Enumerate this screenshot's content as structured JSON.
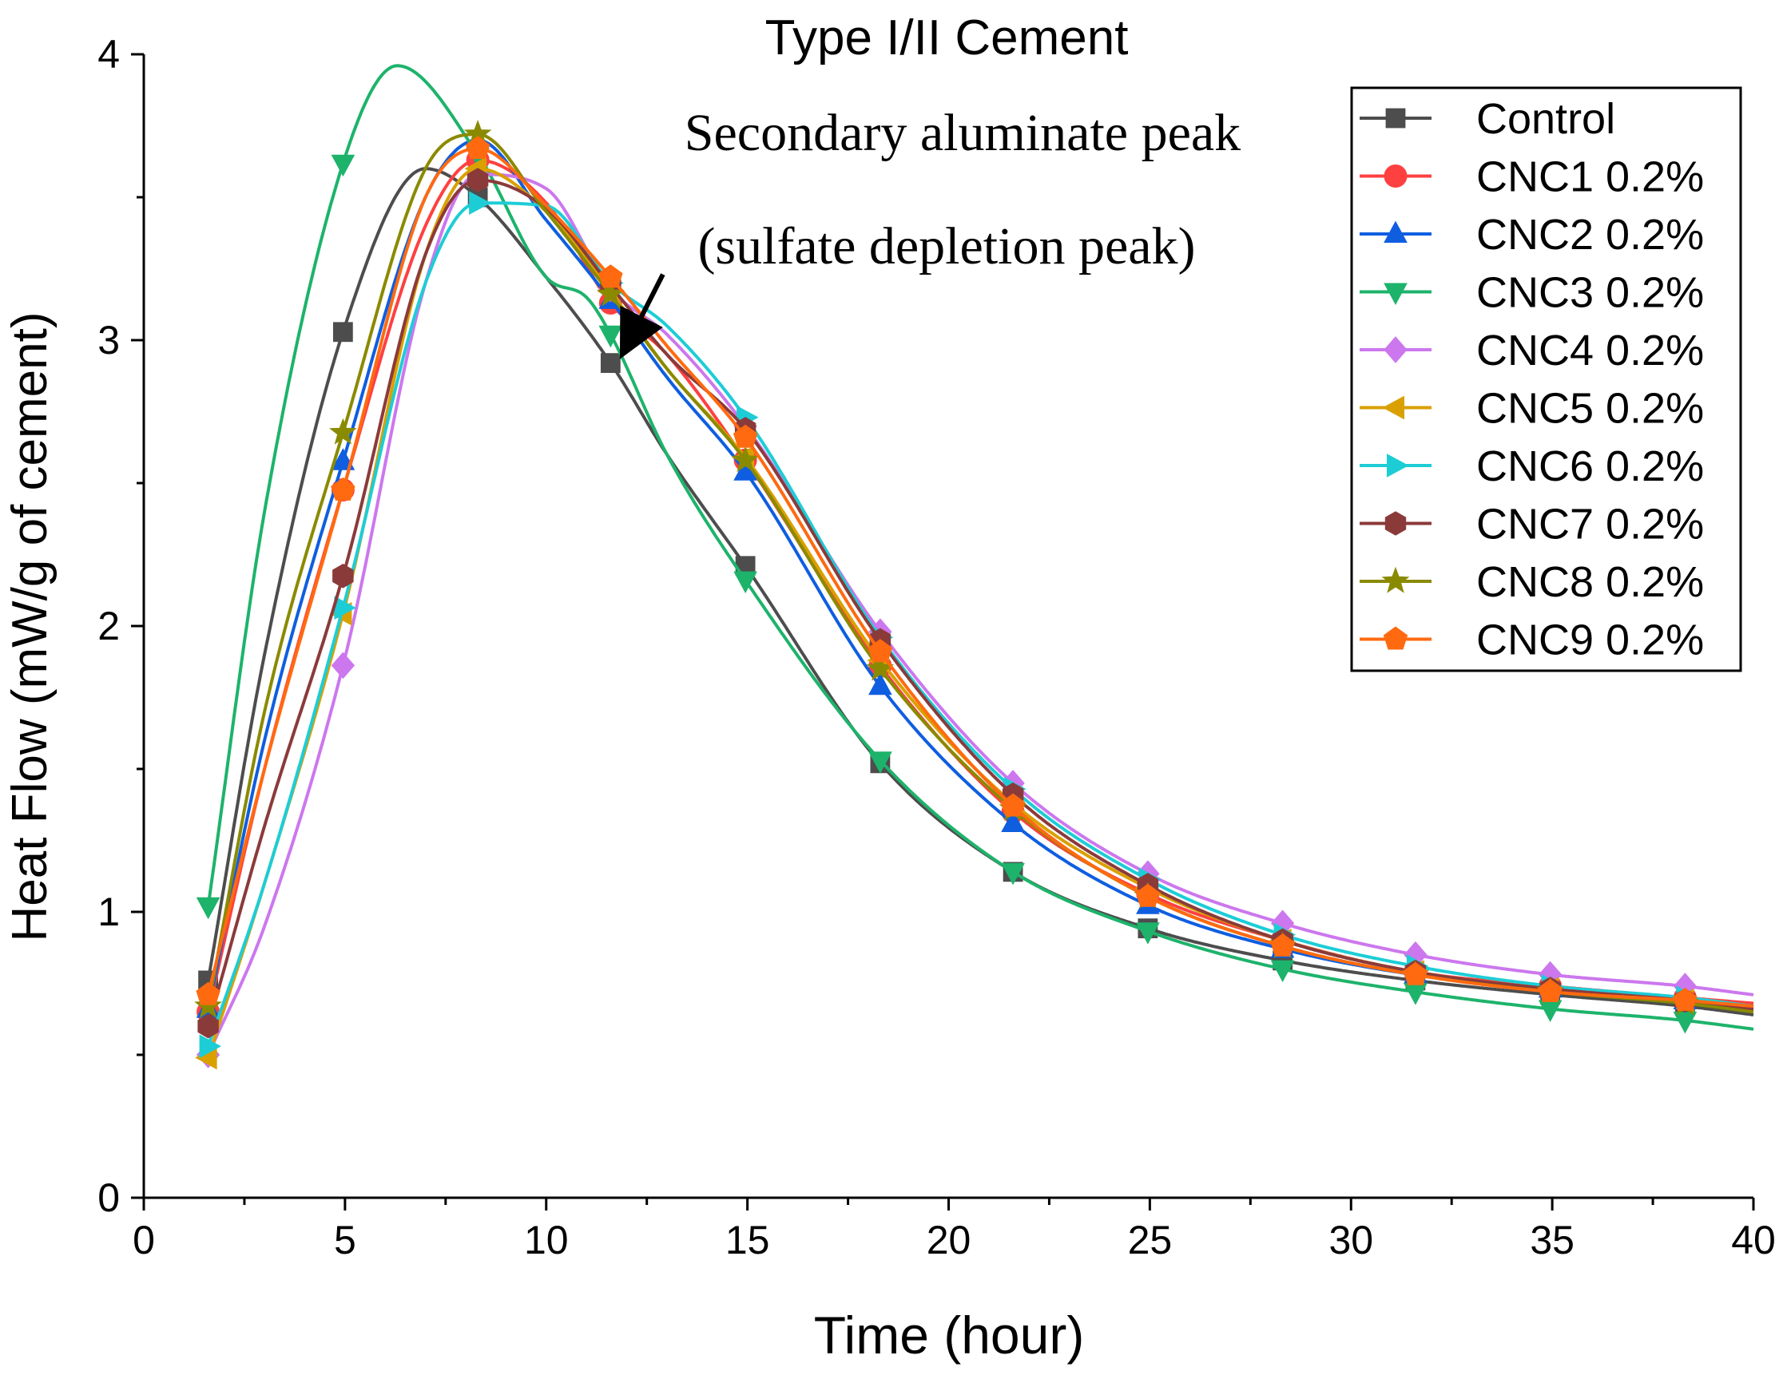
{
  "chart_data": {
    "type": "line",
    "title": "Type I/II Cement",
    "xlabel": "Time (hour)",
    "ylabel": "Heat Flow (mW/g of cement)",
    "xlim": [
      0,
      40
    ],
    "ylim": [
      0,
      4
    ],
    "xticks": [
      0,
      5,
      10,
      15,
      20,
      25,
      30,
      35,
      40
    ],
    "yticks": [
      0,
      1,
      2,
      3,
      4
    ],
    "x_marker_positions": [
      1.6,
      4.95,
      8.3,
      11.6,
      14.95,
      18.3,
      21.6,
      24.95,
      28.3,
      31.6,
      34.95,
      38.3
    ],
    "annotation": {
      "lines": [
        "Secondary aluminate peak",
        "(sulfate depletion peak)"
      ],
      "arrow_from": [
        12.9,
        3.23
      ],
      "arrow_to": [
        11.7,
        2.93
      ]
    },
    "legend_position": "top-right",
    "series": [
      {
        "name": "Control",
        "color": "#4d4d4d",
        "marker": "square",
        "curve": [
          [
            1.6,
            0.76
          ],
          [
            3,
            1.9
          ],
          [
            5,
            3.05
          ],
          [
            7,
            3.6
          ],
          [
            8.3,
            3.5
          ],
          [
            10,
            3.22
          ],
          [
            11.6,
            2.92
          ],
          [
            13,
            2.6
          ],
          [
            15,
            2.2
          ],
          [
            18.3,
            1.52
          ],
          [
            21.6,
            1.14
          ],
          [
            25,
            0.94
          ],
          [
            28.3,
            0.83
          ],
          [
            31.6,
            0.76
          ],
          [
            35,
            0.71
          ],
          [
            38.3,
            0.67
          ],
          [
            40,
            0.64
          ]
        ]
      },
      {
        "name": "CNC1 0.2%",
        "color": "#ff4040",
        "marker": "circle",
        "curve": [
          [
            1.6,
            0.65
          ],
          [
            3,
            1.5
          ],
          [
            5,
            2.5
          ],
          [
            7,
            3.4
          ],
          [
            8.3,
            3.63
          ],
          [
            10,
            3.48
          ],
          [
            11.6,
            3.13
          ],
          [
            13,
            2.95
          ],
          [
            15,
            2.57
          ],
          [
            18.3,
            1.86
          ],
          [
            21.6,
            1.35
          ],
          [
            25,
            1.06
          ],
          [
            28.3,
            0.9
          ],
          [
            31.6,
            0.79
          ],
          [
            35,
            0.74
          ],
          [
            38.3,
            0.7
          ],
          [
            40,
            0.68
          ]
        ]
      },
      {
        "name": "CNC2 0.2%",
        "color": "#0f5ee0",
        "marker": "triangle-up",
        "curve": [
          [
            1.6,
            0.66
          ],
          [
            3,
            1.6
          ],
          [
            5,
            2.6
          ],
          [
            7,
            3.5
          ],
          [
            8.3,
            3.7
          ],
          [
            10,
            3.42
          ],
          [
            11.6,
            3.14
          ],
          [
            13,
            2.87
          ],
          [
            15,
            2.53
          ],
          [
            18.3,
            1.79
          ],
          [
            21.6,
            1.31
          ],
          [
            25,
            1.02
          ],
          [
            28.3,
            0.87
          ],
          [
            31.6,
            0.78
          ],
          [
            35,
            0.73
          ],
          [
            38.3,
            0.69
          ],
          [
            40,
            0.67
          ]
        ]
      },
      {
        "name": "CNC3 0.2%",
        "color": "#1db36b",
        "marker": "triangle-down",
        "curve": [
          [
            1.6,
            1.02
          ],
          [
            3,
            2.4
          ],
          [
            5,
            3.64
          ],
          [
            6.3,
            3.96
          ],
          [
            8.3,
            3.65
          ],
          [
            10,
            3.22
          ],
          [
            11,
            3.15
          ],
          [
            11.6,
            3.02
          ],
          [
            13,
            2.6
          ],
          [
            15,
            2.15
          ],
          [
            18.3,
            1.53
          ],
          [
            21.6,
            1.14
          ],
          [
            25,
            0.93
          ],
          [
            28.3,
            0.8
          ],
          [
            31.6,
            0.72
          ],
          [
            35,
            0.66
          ],
          [
            38.3,
            0.62
          ],
          [
            40,
            0.59
          ]
        ]
      },
      {
        "name": "CNC4 0.2%",
        "color": "#cc77ee",
        "marker": "diamond",
        "curve": [
          [
            1.6,
            0.5
          ],
          [
            3,
            0.95
          ],
          [
            5,
            1.89
          ],
          [
            7,
            3.2
          ],
          [
            8.3,
            3.58
          ],
          [
            10,
            3.53
          ],
          [
            11.6,
            3.18
          ],
          [
            13,
            3.02
          ],
          [
            15,
            2.69
          ],
          [
            18.3,
            1.98
          ],
          [
            21.6,
            1.45
          ],
          [
            25,
            1.13
          ],
          [
            28.3,
            0.96
          ],
          [
            31.6,
            0.85
          ],
          [
            35,
            0.78
          ],
          [
            38.3,
            0.74
          ],
          [
            40,
            0.71
          ]
        ]
      },
      {
        "name": "CNC5 0.2%",
        "color": "#daa000",
        "marker": "triangle-left",
        "curve": [
          [
            1.6,
            0.49
          ],
          [
            3,
            1.1
          ],
          [
            5,
            2.07
          ],
          [
            7,
            3.3
          ],
          [
            8.3,
            3.6
          ],
          [
            10,
            3.45
          ],
          [
            11.6,
            3.17
          ],
          [
            13,
            2.9
          ],
          [
            15,
            2.58
          ],
          [
            18.3,
            1.88
          ],
          [
            21.6,
            1.38
          ],
          [
            25,
            1.08
          ],
          [
            28.3,
            0.9
          ],
          [
            31.6,
            0.79
          ],
          [
            35,
            0.73
          ],
          [
            38.3,
            0.69
          ],
          [
            40,
            0.66
          ]
        ]
      },
      {
        "name": "CNC6 0.2%",
        "color": "#1dcdd6",
        "marker": "triangle-right",
        "curve": [
          [
            1.6,
            0.53
          ],
          [
            3,
            1.1
          ],
          [
            5,
            2.09
          ],
          [
            7,
            3.2
          ],
          [
            8.3,
            3.48
          ],
          [
            10,
            3.47
          ],
          [
            11.6,
            3.2
          ],
          [
            13,
            3.05
          ],
          [
            15,
            2.72
          ],
          [
            18.3,
            1.96
          ],
          [
            21.6,
            1.43
          ],
          [
            25,
            1.11
          ],
          [
            28.3,
            0.92
          ],
          [
            31.6,
            0.81
          ],
          [
            35,
            0.74
          ],
          [
            38.3,
            0.7
          ],
          [
            40,
            0.67
          ]
        ]
      },
      {
        "name": "CNC7 0.2%",
        "color": "#8b3a3a",
        "marker": "hexagon",
        "curve": [
          [
            1.6,
            0.6
          ],
          [
            3,
            1.3
          ],
          [
            5,
            2.2
          ],
          [
            7,
            3.3
          ],
          [
            8.3,
            3.56
          ],
          [
            10,
            3.46
          ],
          [
            11.6,
            3.19
          ],
          [
            13,
            2.95
          ],
          [
            15,
            2.68
          ],
          [
            18.3,
            1.95
          ],
          [
            21.6,
            1.41
          ],
          [
            25,
            1.09
          ],
          [
            28.3,
            0.9
          ],
          [
            31.6,
            0.79
          ],
          [
            35,
            0.73
          ],
          [
            38.3,
            0.69
          ],
          [
            40,
            0.66
          ]
        ]
      },
      {
        "name": "CNC8 0.2%",
        "color": "#8a8a00",
        "marker": "star",
        "curve": [
          [
            1.6,
            0.67
          ],
          [
            3,
            1.7
          ],
          [
            5,
            2.7
          ],
          [
            7,
            3.6
          ],
          [
            8.3,
            3.72
          ],
          [
            10,
            3.45
          ],
          [
            11.6,
            3.16
          ],
          [
            13,
            2.9
          ],
          [
            15,
            2.57
          ],
          [
            18.3,
            1.85
          ],
          [
            21.6,
            1.36
          ],
          [
            25,
            1.05
          ],
          [
            28.3,
            0.88
          ],
          [
            31.6,
            0.78
          ],
          [
            35,
            0.72
          ],
          [
            38.3,
            0.68
          ],
          [
            40,
            0.65
          ]
        ]
      },
      {
        "name": "CNC9 0.2%",
        "color": "#ff6a10",
        "marker": "pentagon",
        "curve": [
          [
            1.6,
            0.71
          ],
          [
            3,
            1.5
          ],
          [
            5,
            2.5
          ],
          [
            7,
            3.5
          ],
          [
            8.3,
            3.67
          ],
          [
            10,
            3.47
          ],
          [
            11.6,
            3.22
          ],
          [
            13,
            2.98
          ],
          [
            15,
            2.65
          ],
          [
            18.3,
            1.91
          ],
          [
            21.6,
            1.37
          ],
          [
            25,
            1.05
          ],
          [
            28.3,
            0.88
          ],
          [
            31.6,
            0.78
          ],
          [
            35,
            0.72
          ],
          [
            38.3,
            0.69
          ],
          [
            40,
            0.67
          ]
        ]
      }
    ]
  }
}
